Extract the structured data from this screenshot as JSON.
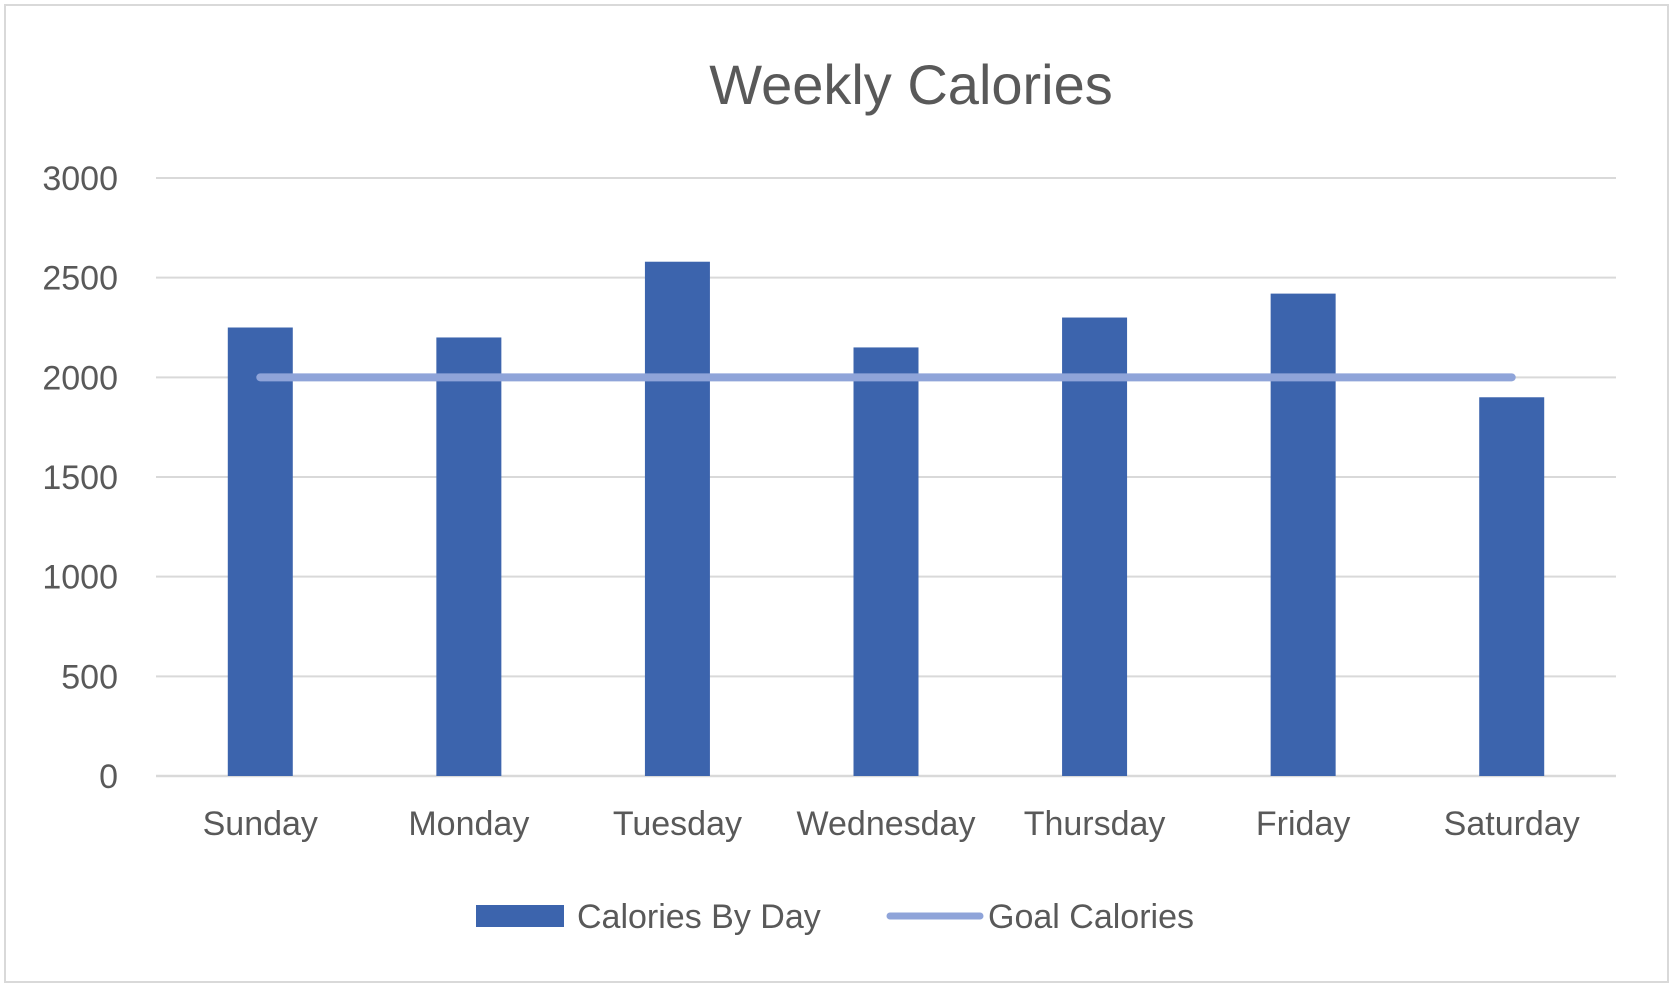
{
  "chart_data": {
    "type": "bar",
    "title": "Weekly Calories",
    "xlabel": "",
    "ylabel": "",
    "categories": [
      "Sunday",
      "Monday",
      "Tuesday",
      "Wednesday",
      "Thursday",
      "Friday",
      "Saturday"
    ],
    "series": [
      {
        "name": "Calories By Day",
        "type": "bar",
        "color": "#3c64ad",
        "values": [
          2250,
          2200,
          2580,
          2150,
          2300,
          2420,
          1900
        ]
      },
      {
        "name": "Goal Calories",
        "type": "line",
        "color": "#8fa4d9",
        "values": [
          2000,
          2000,
          2000,
          2000,
          2000,
          2000,
          2000
        ]
      }
    ],
    "ylim": [
      0,
      3000
    ],
    "yticks": [
      "0",
      "500",
      "1000",
      "1500",
      "2000",
      "2500",
      "3000"
    ],
    "grid": true,
    "gridline_color": "#d9d9d9",
    "legend_position": "bottom"
  }
}
